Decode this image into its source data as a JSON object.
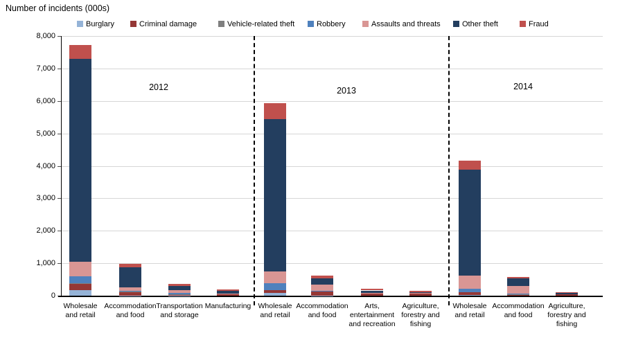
{
  "title": "Number of incidents (000s)",
  "chart_data": {
    "type": "bar",
    "stacked": true,
    "title": "Number of incidents (000s)",
    "ylabel": "Number of incidents (000s)",
    "xlabel": "",
    "ylim": [
      0,
      8000
    ],
    "ytick_interval": 1000,
    "ytick_labels": [
      "0",
      "1,000",
      "2,000",
      "3,000",
      "4,000",
      "5,000",
      "6,000",
      "7,000",
      "8,000"
    ],
    "grid": true,
    "legend_position": "top",
    "series": [
      {
        "name": "Burglary",
        "color": "#95B3D7"
      },
      {
        "name": "Criminal damage",
        "color": "#953735"
      },
      {
        "name": "Vehicle-related theft",
        "color": "#7F7F7F"
      },
      {
        "name": "Robbery",
        "color": "#4F81BD"
      },
      {
        "name": "Assaults and threats",
        "color": "#D99694"
      },
      {
        "name": "Other theft",
        "color": "#233E5F"
      },
      {
        "name": "Fraud",
        "color": "#C0504D"
      }
    ],
    "groups": [
      {
        "year": "2012",
        "categories": [
          {
            "label": "Wholesale\nand retail",
            "values": [
              170,
              210,
              10,
              215,
              450,
              6240,
              430
            ]
          },
          {
            "label": "Accommodation\nand food",
            "values": [
              10,
              105,
              5,
              20,
              125,
              610,
              105
            ]
          },
          {
            "label": "Transportation\nand storage",
            "values": [
              5,
              20,
              20,
              45,
              75,
              125,
              65
            ]
          },
          {
            "label": "Manufacturing",
            "values": [
              0,
              50,
              5,
              0,
              10,
              80,
              40
            ]
          }
        ]
      },
      {
        "year": "2013",
        "categories": [
          {
            "label": "Wholesale\nand retail",
            "values": [
              80,
              90,
              0,
              215,
              360,
              4690,
              490
            ]
          },
          {
            "label": "Accommodation\nand food",
            "values": [
              10,
              110,
              0,
              25,
              190,
              200,
              85
            ]
          },
          {
            "label": "Arts,\nentertainment\nand recreation",
            "values": [
              0,
              65,
              0,
              10,
              15,
              70,
              50
            ]
          },
          {
            "label": "Agriculture,\nforestry and\nfishing",
            "values": [
              0,
              70,
              0,
              0,
              10,
              35,
              25
            ]
          }
        ]
      },
      {
        "year": "2014",
        "categories": [
          {
            "label": "Wholesale\nand retail",
            "values": [
              30,
              85,
              0,
              105,
              405,
              3255,
              270
            ]
          },
          {
            "label": "Accommodation\nand food",
            "values": [
              0,
              45,
              5,
              10,
              235,
              230,
              45
            ]
          },
          {
            "label": "Agriculture,\nforestry and\nfishing",
            "values": [
              0,
              35,
              0,
              0,
              0,
              50,
              25
            ]
          }
        ]
      }
    ],
    "colors": {
      "axis": "#000000",
      "gridline": "#d6d6d6",
      "separator": "#000000"
    }
  }
}
